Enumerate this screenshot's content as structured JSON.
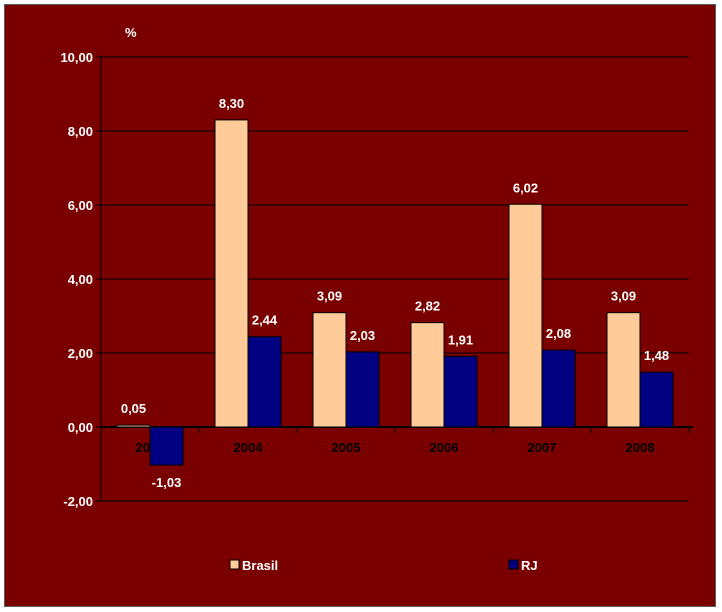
{
  "chart_data": {
    "type": "bar",
    "title": "",
    "ylabel": "%",
    "xlabel": "",
    "categories": [
      "2003",
      "2004",
      "2005",
      "2006",
      "2007",
      "2008"
    ],
    "series": [
      {
        "name": "Brasil",
        "values": [
          0.05,
          8.3,
          3.09,
          2.82,
          6.02,
          3.09
        ],
        "labels": [
          "0,05",
          "8,30",
          "3,09",
          "2,82",
          "6,02",
          "3,09"
        ],
        "color": "#ffcc99"
      },
      {
        "name": "RJ",
        "values": [
          -1.03,
          2.44,
          2.03,
          1.91,
          2.08,
          1.48
        ],
        "labels": [
          "-1,03",
          "2,44",
          "2,03",
          "1,91",
          "2,08",
          "1,48"
        ],
        "color": "#000080"
      }
    ],
    "yticks": [
      -2,
      0,
      2,
      4,
      6,
      8,
      10
    ],
    "ytick_labels": [
      "-2,00",
      "0,00",
      "2,00",
      "4,00",
      "6,00",
      "8,00",
      "10,00"
    ],
    "ylim": [
      -2,
      10
    ],
    "grid": true,
    "legend_position": "bottom",
    "background_color": "#7a0000",
    "gridline_color": "#000000"
  }
}
